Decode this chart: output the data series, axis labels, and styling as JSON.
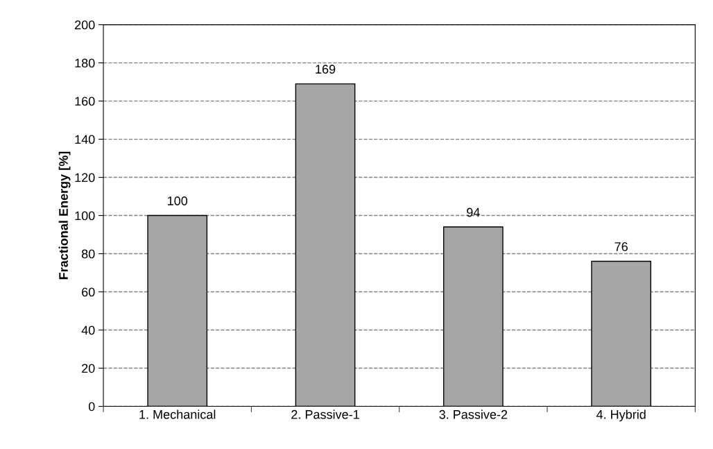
{
  "chart_data": {
    "type": "bar",
    "ylabel": "Fractional Energy [%]",
    "categories": [
      "1. Mechanical",
      "2. Passive-1",
      "3. Passive-2",
      "4. Hybrid"
    ],
    "values": [
      100,
      169,
      94,
      76
    ],
    "color": "#a6a6a6",
    "ylim": [
      0,
      200
    ],
    "yticks": [
      0,
      20,
      40,
      60,
      80,
      100,
      120,
      140,
      160,
      180,
      200
    ],
    "grid": "y",
    "line_style": "dashed",
    "data_labels": true
  }
}
